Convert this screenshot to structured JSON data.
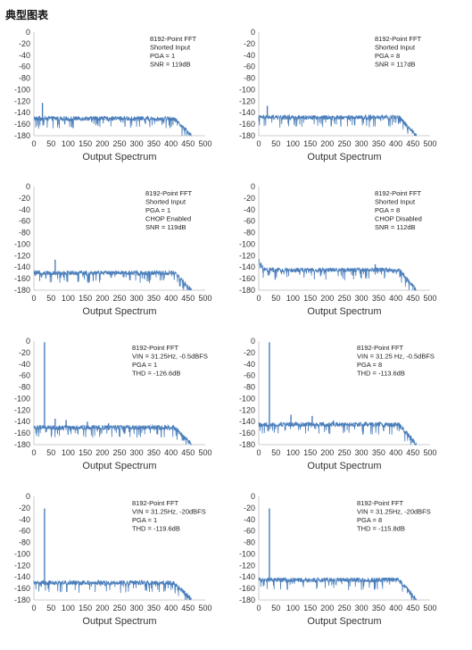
{
  "page": {
    "title": "典型图表"
  },
  "colors": {
    "series": "#4a7ebb",
    "axis": "#bbbbbb",
    "text": "#333333"
  },
  "chart_data": [
    {
      "type": "line",
      "title": "",
      "xlabel": "Output Spectrum",
      "ylabel": "",
      "xlim": [
        0,
        500
      ],
      "ylim": [
        -180,
        0
      ],
      "xticks": [
        "0",
        "50",
        "100",
        "150",
        "200",
        "250",
        "300",
        "350",
        "400",
        "450",
        "500"
      ],
      "yticks": [
        "0",
        "-20",
        "-40",
        "-60",
        "-80",
        "-100",
        "-120",
        "-140",
        "-160",
        "-180"
      ],
      "annotations": [
        "8192-Point FFT",
        "Shorted Input",
        "PGA = 1",
        "SNR = 119dB"
      ],
      "series": [
        {
          "floor": -150,
          "noise": 4,
          "cutoff": 410,
          "end": 460,
          "spikes": [
            {
              "x": 25,
              "y": -123
            }
          ]
        }
      ]
    },
    {
      "type": "line",
      "title": "",
      "xlabel": "Output Spectrum",
      "ylabel": "",
      "xlim": [
        0,
        500
      ],
      "ylim": [
        -180,
        0
      ],
      "xticks": [
        "0",
        "50",
        "100",
        "150",
        "200",
        "250",
        "300",
        "350",
        "400",
        "450",
        "500"
      ],
      "yticks": [
        "0",
        "-20",
        "-40",
        "-60",
        "-80",
        "-100",
        "-120",
        "-140",
        "-160",
        "-180"
      ],
      "annotations": [
        "8192-Point FFT",
        "Shorted Input",
        "PGA = 8",
        "SNR = 117dB"
      ],
      "series": [
        {
          "floor": -148,
          "noise": 4,
          "cutoff": 410,
          "end": 460,
          "spikes": [
            {
              "x": 25,
              "y": -128
            }
          ]
        }
      ]
    },
    {
      "type": "line",
      "title": "",
      "xlabel": "Output Spectrum",
      "ylabel": "",
      "xlim": [
        0,
        500
      ],
      "ylim": [
        -180,
        0
      ],
      "xticks": [
        "0",
        "50",
        "100",
        "150",
        "200",
        "250",
        "300",
        "350",
        "400",
        "450",
        "500"
      ],
      "yticks": [
        "0",
        "-20",
        "-40",
        "-60",
        "-80",
        "-100",
        "-120",
        "-140",
        "-160",
        "-180"
      ],
      "annotations": [
        "8192-Point FFT",
        "Shorted Input",
        "PGA = 1",
        "CHOP Enabled",
        "SNR = 119dB"
      ],
      "series": [
        {
          "floor": -150,
          "noise": 4,
          "cutoff": 410,
          "end": 460,
          "spikes": [
            {
              "x": 62,
              "y": -127
            }
          ]
        }
      ]
    },
    {
      "type": "line",
      "title": "",
      "xlabel": "Output Spectrum",
      "ylabel": "",
      "xlim": [
        0,
        500
      ],
      "ylim": [
        -180,
        0
      ],
      "xticks": [
        "0",
        "50",
        "100",
        "150",
        "200",
        "250",
        "300",
        "350",
        "400",
        "450",
        "500"
      ],
      "yticks": [
        "0",
        "-20",
        "-40",
        "-60",
        "-80",
        "-100",
        "-120",
        "-140",
        "-160",
        "-180"
      ],
      "annotations": [
        "8192-Point FFT",
        "Shorted Input",
        "PGA = 8",
        "CHOP Disabled",
        "SNR = 112dB"
      ],
      "series": [
        {
          "floor": -145,
          "noise": 4,
          "cutoff": 410,
          "end": 460,
          "start_rise": -130,
          "spikes": [
            {
              "x": 340,
              "y": -135
            }
          ]
        }
      ]
    },
    {
      "type": "line",
      "title": "",
      "xlabel": "Output Spectrum",
      "ylabel": "",
      "xlim": [
        0,
        500
      ],
      "ylim": [
        -180,
        0
      ],
      "xticks": [
        "0",
        "50",
        "100",
        "150",
        "200",
        "250",
        "300",
        "350",
        "400",
        "450",
        "500"
      ],
      "yticks": [
        "0",
        "-20",
        "-40",
        "-60",
        "-80",
        "-100",
        "-120",
        "-140",
        "-160",
        "-180"
      ],
      "annotations": [
        "8192-Point FFT",
        "VIN = 31.25Hz, -0.5dBFS",
        "PGA = 1",
        "THD = -126.6dB"
      ],
      "series": [
        {
          "floor": -150,
          "noise": 4,
          "cutoff": 410,
          "end": 460,
          "spikes": [
            {
              "x": 31,
              "y": -2
            },
            {
              "x": 62,
              "y": -135
            },
            {
              "x": 94,
              "y": -137
            },
            {
              "x": 156,
              "y": -140
            },
            {
              "x": 218,
              "y": -143
            }
          ]
        }
      ]
    },
    {
      "type": "line",
      "title": "",
      "xlabel": "Output Spectrum",
      "ylabel": "",
      "xlim": [
        0,
        500
      ],
      "ylim": [
        -180,
        0
      ],
      "xticks": [
        "0",
        "50",
        "100",
        "150",
        "200",
        "250",
        "300",
        "350",
        "400",
        "450",
        "500"
      ],
      "yticks": [
        "0",
        "-20",
        "-40",
        "-60",
        "-80",
        "-100",
        "-120",
        "-140",
        "-160",
        "-180"
      ],
      "annotations": [
        "8192-Point FFT",
        "VIN = 31.25 Hz, -0.5dBFS",
        "PGA = 8",
        "THD = -113.6dB"
      ],
      "series": [
        {
          "floor": -145,
          "noise": 4,
          "cutoff": 410,
          "end": 460,
          "spikes": [
            {
              "x": 31,
              "y": -2
            },
            {
              "x": 94,
              "y": -128
            },
            {
              "x": 156,
              "y": -130
            },
            {
              "x": 218,
              "y": -138
            },
            {
              "x": 312,
              "y": -140
            }
          ]
        }
      ]
    },
    {
      "type": "line",
      "title": "",
      "xlabel": "Output Spectrum",
      "ylabel": "",
      "xlim": [
        0,
        500
      ],
      "ylim": [
        -180,
        0
      ],
      "xticks": [
        "0",
        "50",
        "100",
        "150",
        "200",
        "250",
        "300",
        "350",
        "400",
        "450",
        "500"
      ],
      "yticks": [
        "0",
        "-20",
        "-40",
        "-60",
        "-80",
        "-100",
        "-120",
        "-140",
        "-160",
        "-180"
      ],
      "annotations": [
        "8192-Point FFT",
        "VIN = 31.25Hz, -20dBFS",
        "PGA = 1",
        "THD = -119.6dB"
      ],
      "series": [
        {
          "floor": -150,
          "noise": 4,
          "cutoff": 410,
          "end": 460,
          "spikes": [
            {
              "x": 31,
              "y": -21
            }
          ]
        }
      ]
    },
    {
      "type": "line",
      "title": "",
      "xlabel": "Output Spectrum",
      "ylabel": "",
      "xlim": [
        0,
        500
      ],
      "ylim": [
        -180,
        0
      ],
      "xticks": [
        "0",
        "50",
        "100",
        "150",
        "200",
        "250",
        "300",
        "350",
        "400",
        "450",
        "500"
      ],
      "yticks": [
        "0",
        "-20",
        "-40",
        "-60",
        "-80",
        "-100",
        "-120",
        "-140",
        "-160",
        "-180"
      ],
      "annotations": [
        "8192-Point FFT",
        "VIN = 31.25Hz, -20dBFS",
        "PGA = 8",
        "THD = -115.8dB"
      ],
      "series": [
        {
          "floor": -145,
          "noise": 4,
          "cutoff": 410,
          "end": 460,
          "spikes": [
            {
              "x": 31,
              "y": -21
            }
          ]
        }
      ]
    }
  ]
}
